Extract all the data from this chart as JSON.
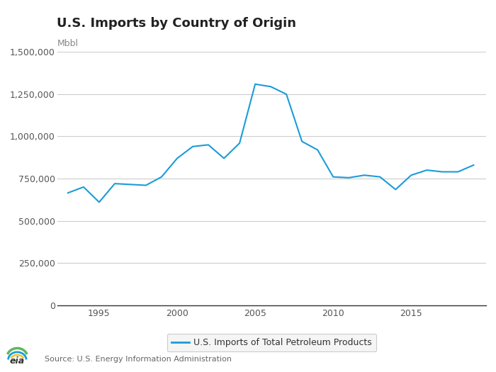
{
  "title": "U.S. Imports by Country of Origin",
  "ylabel_above": "Mbbl",
  "line_color": "#1a9cd8",
  "background_color": "#ffffff",
  "legend_label": "U.S. Imports of Total Petroleum Products",
  "source_text": "Source: U.S. Energy Information Administration",
  "years": [
    1993,
    1994,
    1995,
    1996,
    1997,
    1998,
    1999,
    2000,
    2001,
    2002,
    2003,
    2004,
    2005,
    2006,
    2007,
    2008,
    2009,
    2010,
    2011,
    2012,
    2013,
    2014,
    2015,
    2016,
    2017,
    2018,
    2019
  ],
  "values": [
    665000,
    700000,
    610000,
    720000,
    715000,
    710000,
    760000,
    870000,
    940000,
    950000,
    870000,
    960000,
    1310000,
    1295000,
    1250000,
    970000,
    920000,
    760000,
    755000,
    770000,
    760000,
    685000,
    770000,
    800000,
    790000,
    790000,
    830000
  ],
  "ylim": [
    0,
    1500000
  ],
  "yticks": [
    0,
    250000,
    500000,
    750000,
    1000000,
    1250000,
    1500000
  ],
  "xlim_start": 1992.3,
  "xlim_end": 2019.8,
  "xticks": [
    1995,
    2000,
    2005,
    2010,
    2015
  ],
  "title_fontsize": 13,
  "axis_label_fontsize": 9,
  "tick_fontsize": 9,
  "legend_fontsize": 9,
  "source_fontsize": 8
}
